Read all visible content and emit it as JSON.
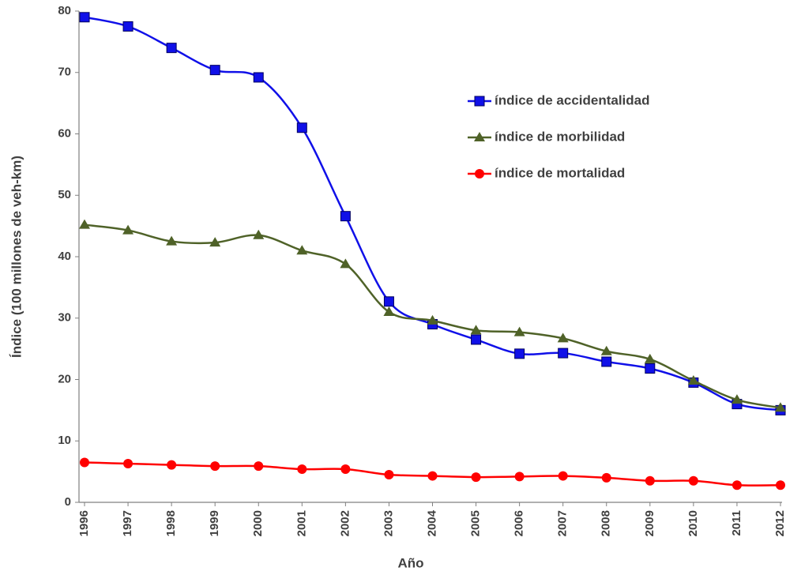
{
  "chart_data": {
    "type": "line",
    "y_label": "Índice (100 millones de veh-km)",
    "x_label": "Año",
    "categories": [
      "1996",
      "1997",
      "1998",
      "1999",
      "2000",
      "2001",
      "2002",
      "2003",
      "2004",
      "2005",
      "2006",
      "2007",
      "2008",
      "2009",
      "2010",
      "2011",
      "2012"
    ],
    "series": [
      {
        "name": "índice de accidentalidad",
        "color": "#1010e8",
        "marker": "square",
        "values": [
          79.0,
          77.5,
          74.0,
          70.4,
          69.2,
          61.0,
          46.6,
          32.7,
          29.0,
          26.5,
          24.2,
          24.3,
          22.9,
          21.8,
          19.5,
          16.0,
          15.0
        ]
      },
      {
        "name": "índice de morbilidad",
        "color": "#4f6228",
        "marker": "triangle",
        "values": [
          45.2,
          44.3,
          42.5,
          42.3,
          43.5,
          41.0,
          38.8,
          31.0,
          29.6,
          28.0,
          27.7,
          26.7,
          24.6,
          23.3,
          19.8,
          16.7,
          15.4
        ]
      },
      {
        "name": "índice de mortalidad",
        "color": "#ff0000",
        "marker": "circle",
        "values": [
          6.5,
          6.3,
          6.1,
          5.9,
          5.9,
          5.4,
          5.4,
          4.5,
          4.3,
          4.1,
          4.2,
          4.3,
          4.0,
          3.5,
          3.5,
          2.8,
          2.8
        ]
      }
    ],
    "ylim": [
      0,
      80
    ],
    "yticks": [
      0,
      10,
      20,
      30,
      40,
      50,
      60,
      70,
      80
    ],
    "grid": false,
    "legend": "upper right"
  }
}
